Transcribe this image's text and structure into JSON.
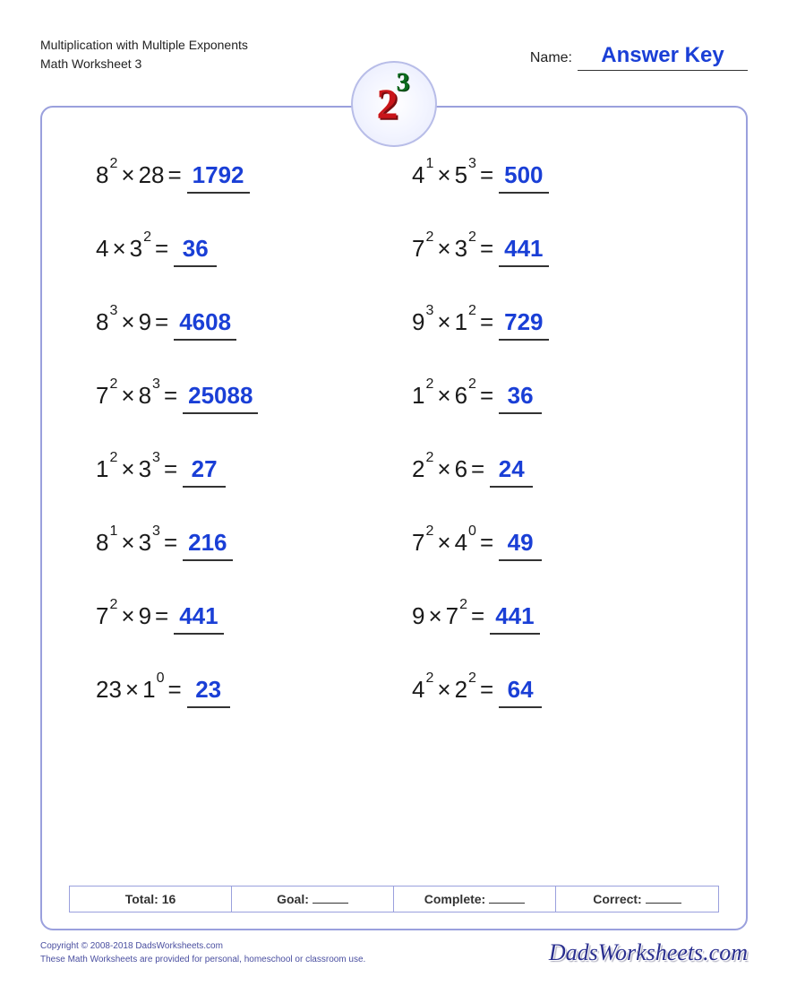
{
  "header": {
    "title_line1": "Multiplication with Multiple Exponents",
    "title_line2": "Math Worksheet 3",
    "name_label": "Name:",
    "name_value": "Answer Key"
  },
  "badge": {
    "base": "2",
    "exp": "3"
  },
  "colors": {
    "border": "#9aa0dd",
    "answer": "#1a3fd6",
    "text": "#1a1a1a",
    "badge_base": "#c9151a",
    "badge_exp": "#0a6b1e"
  },
  "problems": [
    {
      "t1": {
        "b": "8",
        "e": "2"
      },
      "t2": {
        "b": "28",
        "e": ""
      },
      "ans": "1792"
    },
    {
      "t1": {
        "b": "4",
        "e": "1"
      },
      "t2": {
        "b": "5",
        "e": "3"
      },
      "ans": "500"
    },
    {
      "t1": {
        "b": "4",
        "e": ""
      },
      "t2": {
        "b": "3",
        "e": "2"
      },
      "ans": "36"
    },
    {
      "t1": {
        "b": "7",
        "e": "2"
      },
      "t2": {
        "b": "3",
        "e": "2"
      },
      "ans": "441"
    },
    {
      "t1": {
        "b": "8",
        "e": "3"
      },
      "t2": {
        "b": "9",
        "e": ""
      },
      "ans": "4608"
    },
    {
      "t1": {
        "b": "9",
        "e": "3"
      },
      "t2": {
        "b": "1",
        "e": "2"
      },
      "ans": "729"
    },
    {
      "t1": {
        "b": "7",
        "e": "2"
      },
      "t2": {
        "b": "8",
        "e": "3"
      },
      "ans": "25088"
    },
    {
      "t1": {
        "b": "1",
        "e": "2"
      },
      "t2": {
        "b": "6",
        "e": "2"
      },
      "ans": "36"
    },
    {
      "t1": {
        "b": "1",
        "e": "2"
      },
      "t2": {
        "b": "3",
        "e": "3"
      },
      "ans": "27"
    },
    {
      "t1": {
        "b": "2",
        "e": "2"
      },
      "t2": {
        "b": "6",
        "e": ""
      },
      "ans": "24"
    },
    {
      "t1": {
        "b": "8",
        "e": "1"
      },
      "t2": {
        "b": "3",
        "e": "3"
      },
      "ans": "216"
    },
    {
      "t1": {
        "b": "7",
        "e": "2"
      },
      "t2": {
        "b": "4",
        "e": "0"
      },
      "ans": "49"
    },
    {
      "t1": {
        "b": "7",
        "e": "2"
      },
      "t2": {
        "b": "9",
        "e": ""
      },
      "ans": "441"
    },
    {
      "t1": {
        "b": "9",
        "e": ""
      },
      "t2": {
        "b": "7",
        "e": "2"
      },
      "ans": "441"
    },
    {
      "t1": {
        "b": "23",
        "e": ""
      },
      "t2": {
        "b": "1",
        "e": "0"
      },
      "ans": "23"
    },
    {
      "t1": {
        "b": "4",
        "e": "2"
      },
      "t2": {
        "b": "2",
        "e": "2"
      },
      "ans": "64"
    }
  ],
  "stats": {
    "total_label": "Total:",
    "total_value": "16",
    "goal_label": "Goal:",
    "complete_label": "Complete:",
    "correct_label": "Correct:"
  },
  "footer": {
    "copyright": "Copyright © 2008-2018 DadsWorksheets.com",
    "tagline": "These Math Worksheets are provided for personal, homeschool or classroom use.",
    "logo": "DadsWorksheets.com"
  }
}
